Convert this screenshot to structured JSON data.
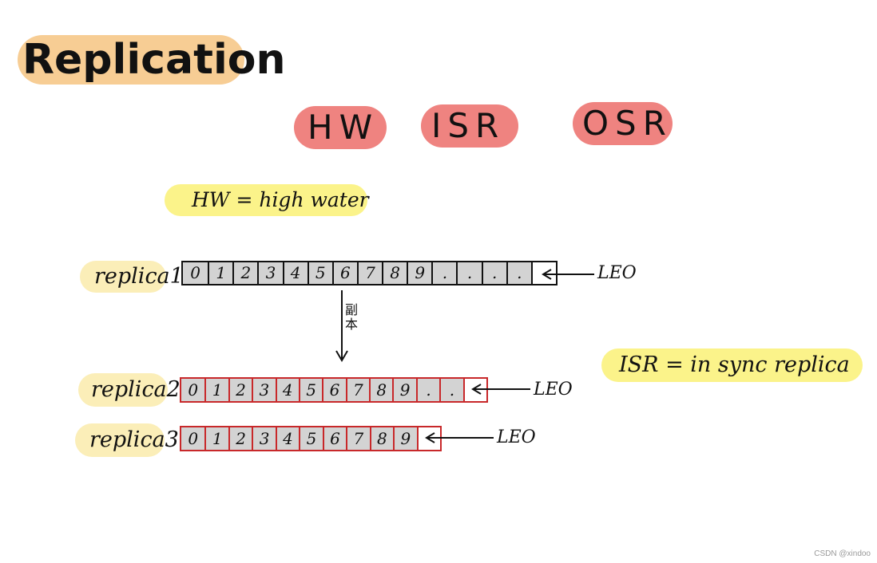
{
  "title": "Replication",
  "terms": [
    "HW",
    "ISR",
    "OSR"
  ],
  "definitions": {
    "hw": "HW = high water",
    "isr": "ISR = in sync replica"
  },
  "arrow_label": "副本",
  "leo_label": "LEO",
  "replicas": [
    {
      "name": "replica1",
      "cells": [
        "0",
        "1",
        "2",
        "3",
        "4",
        "5",
        "6",
        "7",
        "8",
        "9",
        ".",
        ".",
        ".",
        ".",
        ""
      ]
    },
    {
      "name": "replica2",
      "cells": [
        "0",
        "1",
        "2",
        "3",
        "4",
        "5",
        "6",
        "7",
        "8",
        "9",
        ".",
        "."
      ]
    },
    {
      "name": "replica3",
      "cells": [
        "0",
        "1",
        "2",
        "3",
        "4",
        "5",
        "6",
        "7",
        "8",
        "9"
      ]
    }
  ],
  "footer": "CSDN @xindoo",
  "colors": {
    "title_highlight": "#f7cd94",
    "term_highlight": "#ef8380",
    "definition_highlight": "#fbf38a",
    "replica_label_highlight": "#fbeeb8",
    "cell_fill": "#d3d3d3",
    "replica1_border": "#111111",
    "replica_border_red": "#c8282a"
  }
}
